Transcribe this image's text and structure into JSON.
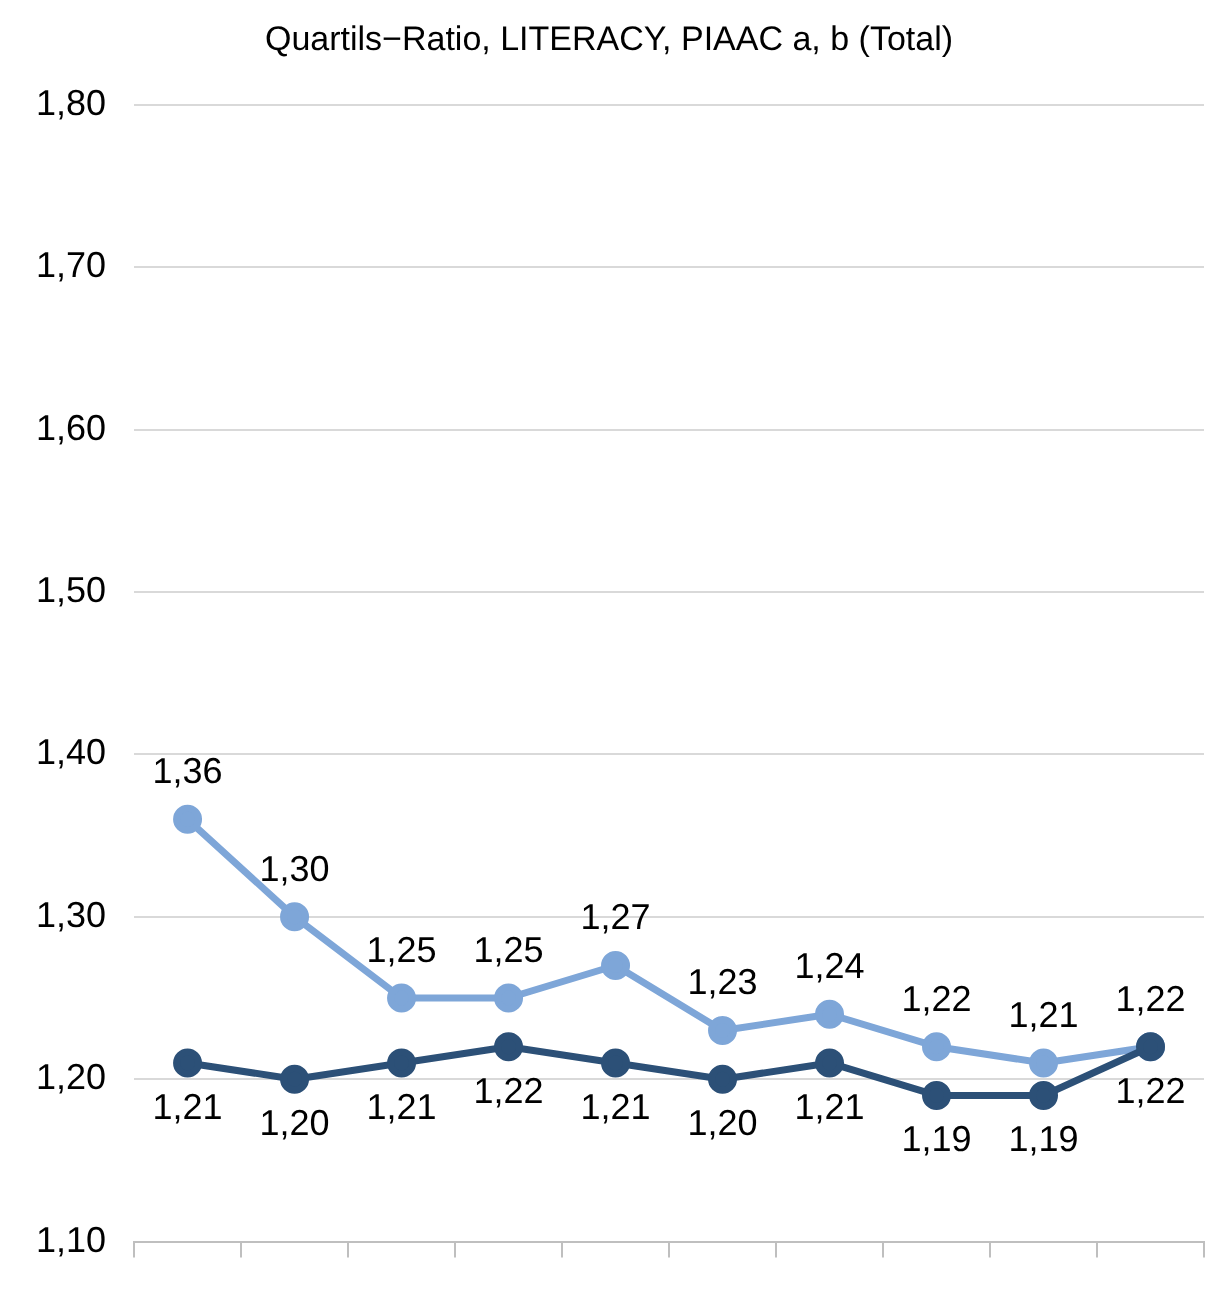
{
  "chart_data": {
    "type": "line",
    "title": "Quartils−Ratio, LITERACY, PIAAC a, b (Total)",
    "categories": [
      null,
      null,
      null,
      null,
      null,
      null,
      null,
      null,
      null,
      null
    ],
    "series": [
      {
        "color": "#7ea6d8",
        "values": [
          1.36,
          1.3,
          1.25,
          1.25,
          1.27,
          1.23,
          1.24,
          1.22,
          1.21,
          1.22
        ],
        "value_labels": [
          "1,36",
          "1,30",
          "1,25",
          "1,25",
          "1,27",
          "1,23",
          "1,24",
          "1,22",
          "1,21",
          "1,22"
        ]
      },
      {
        "color": "#2c5077",
        "values": [
          1.21,
          1.2,
          1.21,
          1.22,
          1.21,
          1.2,
          1.21,
          1.19,
          1.19,
          1.22
        ],
        "value_labels": [
          "1,21",
          "1,20",
          "1,21",
          "1,22",
          "1,21",
          "1,20",
          "1,21",
          "1,19",
          "1,19",
          "1,22"
        ]
      }
    ],
    "ylim": [
      1.1,
      1.8
    ],
    "yticks": [
      {
        "value": 1.1,
        "label": "1,10"
      },
      {
        "value": 1.2,
        "label": "1,20"
      },
      {
        "value": 1.3,
        "label": "1,30"
      },
      {
        "value": 1.4,
        "label": "1,40"
      },
      {
        "value": 1.5,
        "label": "1,50"
      },
      {
        "value": 1.6,
        "label": "1,60"
      },
      {
        "value": 1.7,
        "label": "1,70"
      },
      {
        "value": 1.8,
        "label": "1,80"
      }
    ],
    "grid": "y",
    "legend": false,
    "marker": "circle",
    "line_style": "solid"
  }
}
